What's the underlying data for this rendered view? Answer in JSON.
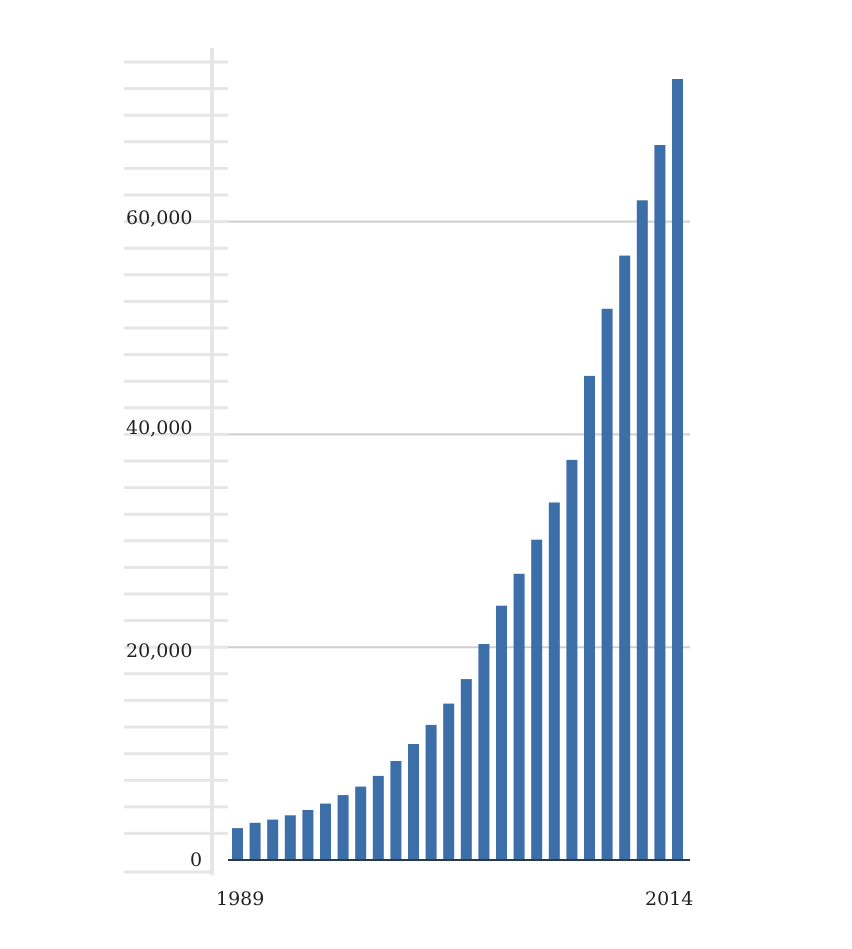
{
  "chart_data": {
    "type": "bar",
    "title": "",
    "xlabel": "",
    "ylabel": "",
    "x_tick_labels": [
      "1989",
      "2014"
    ],
    "y_tick_labels": [
      "0",
      "20,000",
      "40,000",
      "60,000"
    ],
    "y_ticks": [
      0,
      20000,
      40000,
      60000
    ],
    "ylim": [
      0,
      75000
    ],
    "grid": true,
    "bar_color": "#3c6ea8",
    "categories": [
      "1989",
      "1990",
      "1991",
      "1992",
      "1993",
      "1994",
      "1995",
      "1996",
      "1997",
      "1998",
      "1999",
      "2000",
      "2001",
      "2002",
      "2003",
      "2004",
      "2005",
      "2006",
      "2007",
      "2008",
      "2009",
      "2010",
      "2011",
      "2012",
      "2013",
      "2014"
    ],
    "values": [
      3000,
      3500,
      3800,
      4200,
      4700,
      5300,
      6100,
      6900,
      7900,
      9300,
      10900,
      12700,
      14700,
      17000,
      20300,
      23900,
      26900,
      30100,
      33600,
      37600,
      45500,
      51800,
      56800,
      62000,
      67200,
      73400
    ]
  }
}
